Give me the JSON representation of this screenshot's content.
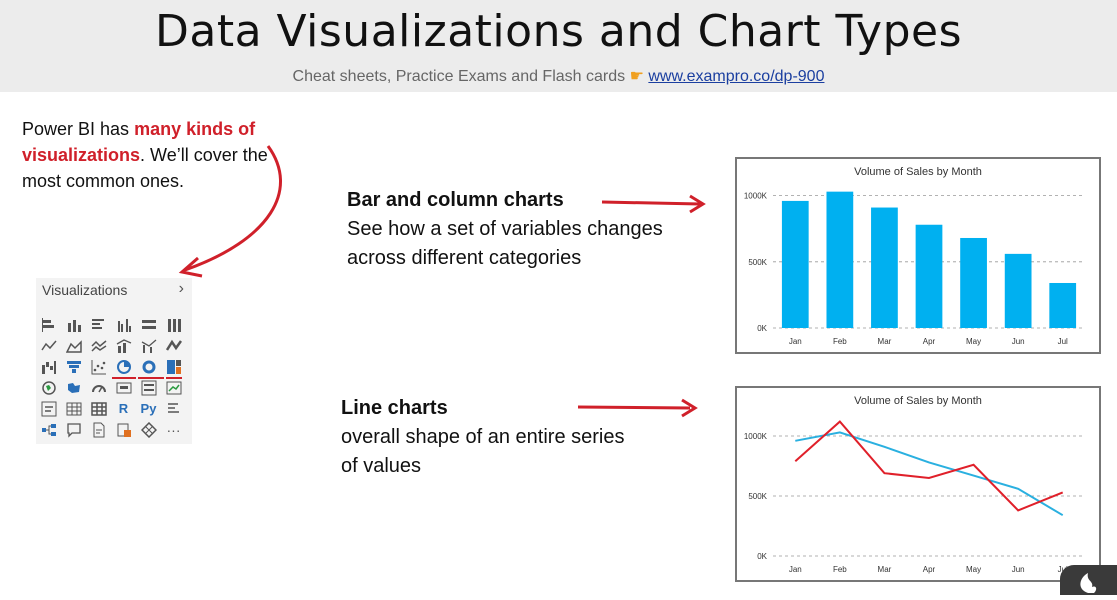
{
  "header": {
    "title": "Data Visualizations and Chart Types",
    "subtitle_text": "Cheat sheets, Practice Exams and Flash cards",
    "subtitle_link": "www.exampro.co/dp-900",
    "pointer_icon": "pointing-hand-emoji"
  },
  "intro": {
    "pre": "Power BI has ",
    "highlight": "many kinds of visualizations",
    "post": ". We’ll cover the most common ones."
  },
  "viz_panel": {
    "title": "Visualizations",
    "chevron": "›",
    "text_icons": {
      "r": "R",
      "py": "Py",
      "more": "···"
    }
  },
  "bar_section": {
    "heading": "Bar and column charts",
    "line1": "See how a set of variables changes",
    "line2": "across different categories"
  },
  "line_section": {
    "heading": "Line charts",
    "line1": "overall shape of an entire series",
    "line2": "of values"
  },
  "colors": {
    "accent_red": "#d0202a",
    "bar_blue": "#00b0f0",
    "line_red": "#e0202a",
    "link_blue": "#1b3fa0"
  },
  "chart_data": [
    {
      "type": "bar",
      "title": "Volume of Sales by Month",
      "categories": [
        "Jan",
        "Feb",
        "Mar",
        "Apr",
        "May",
        "Jun",
        "Jul"
      ],
      "values": [
        960,
        1030,
        910,
        780,
        680,
        560,
        340
      ],
      "yticks": [
        "0K",
        "500K",
        "1000K"
      ],
      "ylim": [
        0,
        1050
      ],
      "grid": true
    },
    {
      "type": "line",
      "title": "Volume of Sales by Month",
      "categories": [
        "Jan",
        "Feb",
        "Mar",
        "Apr",
        "May",
        "Jun",
        "Jul"
      ],
      "series": [
        {
          "values": [
            960,
            1030,
            910,
            780,
            670,
            560,
            340
          ],
          "color": "#2ab0e0"
        },
        {
          "values": [
            790,
            1120,
            690,
            650,
            760,
            380,
            530
          ],
          "color": "#e0202a"
        }
      ],
      "yticks": [
        "0K",
        "500K",
        "1000K"
      ],
      "ylim": [
        0,
        1150
      ],
      "grid": true
    }
  ]
}
